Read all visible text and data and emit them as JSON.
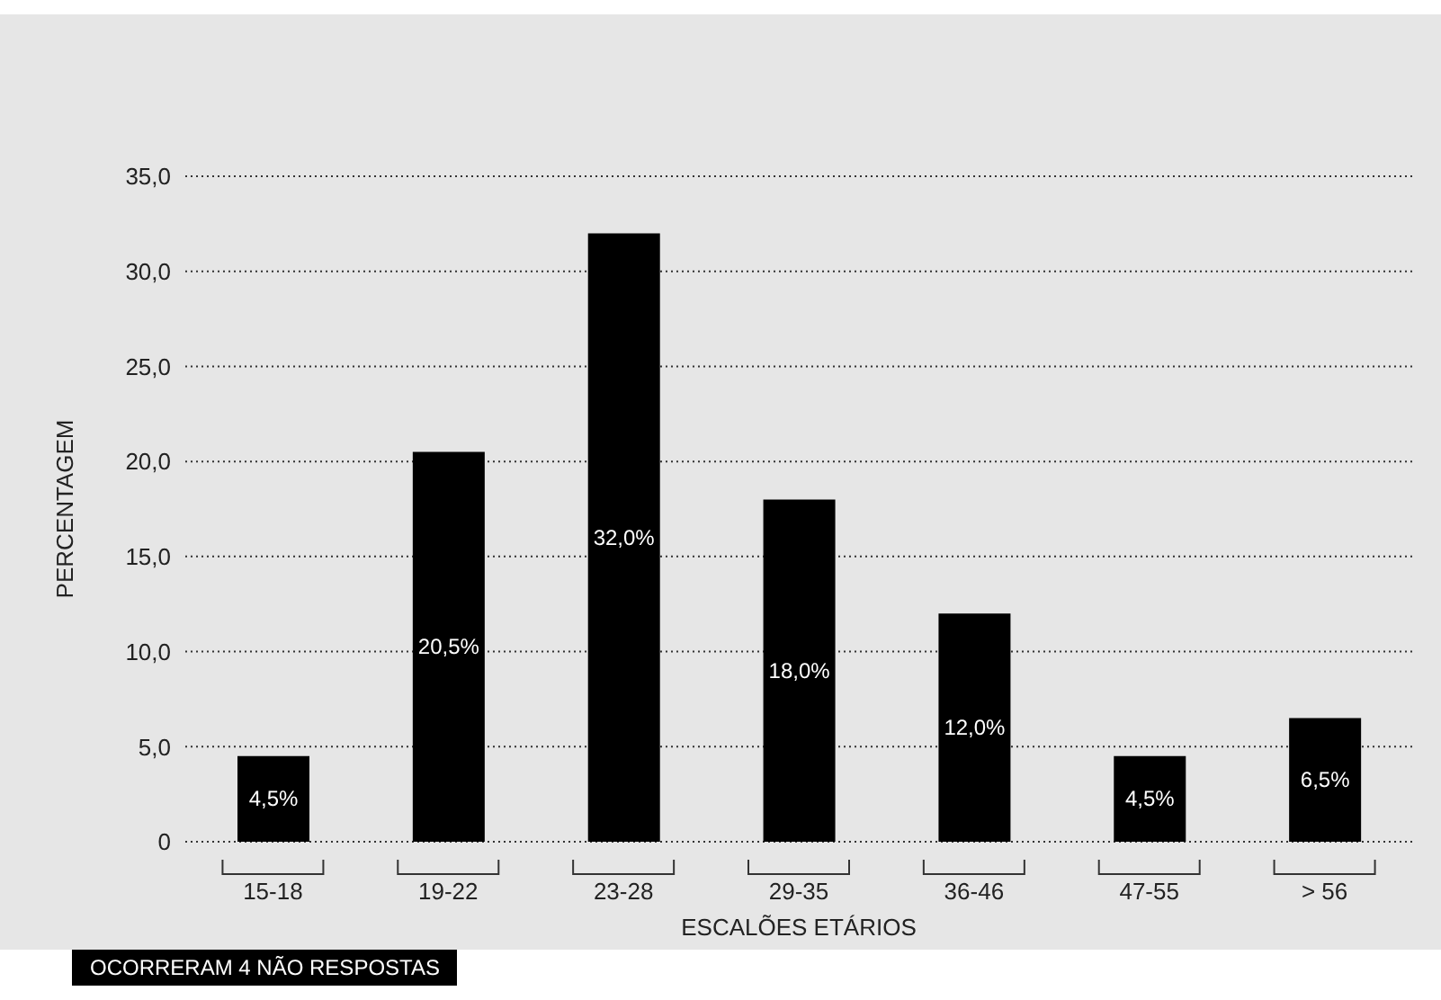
{
  "chart_data": {
    "type": "bar",
    "xlabel": "ESCALÕES ETÁRIOS",
    "ylabel": "PERCENTAGEM",
    "categories": [
      "15-18",
      "19-22",
      "23-28",
      "29-35",
      "36-46",
      "47-55",
      "> 56"
    ],
    "values": [
      4.5,
      20.5,
      32.0,
      18.0,
      12.0,
      4.5,
      6.5
    ],
    "value_labels": [
      "4,5%",
      "20,5%",
      "32,0%",
      "18,0%",
      "12,0%",
      "4,5%",
      "6,5%"
    ],
    "color": "#000000",
    "ylim": [
      0,
      35
    ],
    "yticks": [
      0,
      {
        "value": 5,
        "label": "5,0"
      },
      {
        "value": 10,
        "label": "10,0"
      },
      {
        "value": 15,
        "label": "15,0"
      },
      {
        "value": 20,
        "label": "20,0"
      },
      {
        "value": 25,
        "label": "25,0"
      },
      {
        "value": 30,
        "label": "30,0"
      },
      {
        "value": 35,
        "label": "35,0"
      }
    ],
    "grid": "y",
    "annotations": [
      "OCORRERAM 4 NÃO RESPOSTAS"
    ]
  }
}
